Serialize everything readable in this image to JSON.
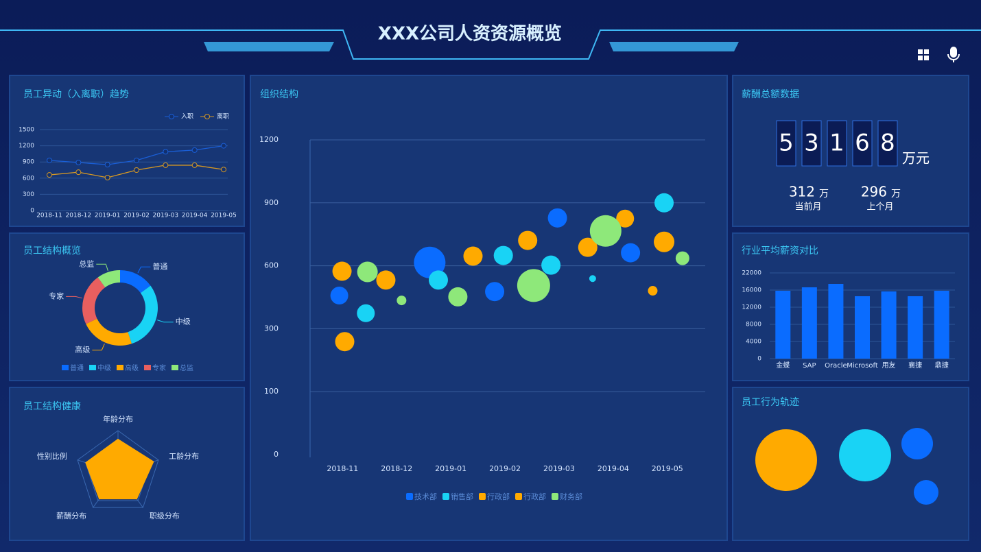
{
  "header": {
    "title": "XXX公司人资资源概览"
  },
  "chart_data": [
    {
      "type": "line",
      "title": "员工异动（入离职）趋势",
      "categories": [
        "2018-11",
        "2018-12",
        "2019-01",
        "2019-02",
        "2019-03",
        "2019-04",
        "2019-05"
      ],
      "series": [
        {
          "name": "入职",
          "color": "#1a5fd8",
          "values": [
            930,
            890,
            850,
            930,
            1090,
            1120,
            1200
          ]
        },
        {
          "name": "离职",
          "color": "#d99a22",
          "values": [
            660,
            710,
            610,
            750,
            840,
            840,
            760
          ]
        }
      ],
      "ylim": [
        0,
        1500
      ],
      "yticks": [
        0,
        300,
        600,
        900,
        1200,
        1500
      ],
      "grid": true
    },
    {
      "type": "pie",
      "title": "员工结构概览",
      "categories": [
        "普通",
        "中级",
        "高级",
        "专家",
        "总监"
      ],
      "values": [
        15,
        30,
        23,
        22,
        10
      ],
      "colors": [
        "#0a6cff",
        "#19d3f5",
        "#ffaa00",
        "#e85f5f",
        "#8ee87a"
      ],
      "donut": true
    },
    {
      "type": "radar",
      "title": "员工结构健康",
      "categories": [
        "年龄分布",
        "工龄分布",
        "职级分布",
        "薪酬分布",
        "性别比例"
      ],
      "values": [
        80,
        88,
        75,
        75,
        80
      ],
      "rlim": [
        0,
        100
      ],
      "color": "#ffaa00"
    },
    {
      "type": "scatter",
      "title": "组织结构",
      "series": [
        {
          "name": "技术部",
          "color": "#0a6cff",
          "x": [
            -0.06,
            1.61,
            2.81,
            3.97,
            5.32
          ],
          "values": [
            458,
            616,
            477,
            828,
            662
          ],
          "sizes": [
            13,
            23,
            14,
            14,
            14
          ]
        },
        {
          "name": "销售部",
          "color": "#19d3f5",
          "x": [
            0.43,
            1.77,
            2.97,
            3.85,
            4.62,
            5.94
          ],
          "values": [
            374,
            532,
            649,
            603,
            539,
            900
          ],
          "sizes": [
            13,
            14,
            14,
            14,
            5,
            14
          ]
        },
        {
          "name": "行政部",
          "color": "#ffaa00",
          "x": [
            -0.01,
            0.04,
            0.8,
            2.41,
            3.42,
            4.53
          ],
          "values": [
            574,
            259,
            532,
            646,
            721,
            688
          ],
          "sizes": [
            14,
            14,
            14,
            14,
            14,
            14
          ]
        },
        {
          "name": "行政部",
          "color": "#ffaa00",
          "x": [
            5.22,
            5.73,
            5.94
          ],
          "values": [
            825,
            481,
            714
          ],
          "sizes": [
            13,
            7,
            15
          ]
        },
        {
          "name": "财务部",
          "color": "#8ee87a",
          "x": [
            0.46,
            1.09,
            2.13,
            3.53,
            4.86,
            6.28
          ],
          "values": [
            571,
            435,
            452,
            506,
            766,
            636
          ],
          "sizes": [
            15,
            7,
            14,
            24,
            23,
            10
          ]
        }
      ],
      "xlim": [
        -0.6,
        6.7
      ],
      "xticks": [
        {
          "value": 0,
          "label": "2018-11"
        },
        {
          "value": 1,
          "label": "2018-12"
        },
        {
          "value": 2,
          "label": "2019-01"
        },
        {
          "value": 3,
          "label": "2019-02"
        },
        {
          "value": 4,
          "label": "2019-03"
        },
        {
          "value": 5,
          "label": "2019-04"
        },
        {
          "value": 6,
          "label": "2019-05"
        }
      ],
      "ylim": [
        0,
        1200
      ],
      "yticks": [
        0,
        100,
        300,
        600,
        900,
        1200
      ],
      "grid": true
    },
    {
      "type": "kpi",
      "title": "薪酬总额数据",
      "digits": [
        "5",
        "3",
        "1",
        "6",
        "8"
      ],
      "unit": "万元",
      "items": [
        {
          "value": 312,
          "unit": "万",
          "label": "当前月"
        },
        {
          "value": 296,
          "unit": "万",
          "label": "上个月"
        }
      ]
    },
    {
      "type": "bar",
      "title": "行业平均薪资对比",
      "categories": [
        "金蝶",
        "SAP",
        "Oracle",
        "Microsoft",
        "用友",
        "襄捷",
        "鼎捷"
      ],
      "values": [
        15840,
        16960,
        18160,
        14560,
        15680,
        14560,
        15840
      ],
      "color": "#0a6cff",
      "ylim": [
        0,
        22000
      ],
      "yticks": [
        0,
        4000,
        8000,
        12000,
        16000,
        22000
      ],
      "grid": true
    },
    {
      "type": "bubble",
      "title": "员工行为轨迹",
      "values": [
        45,
        38,
        23,
        18
      ],
      "colors": [
        "#ffaa00",
        "#19d3f5",
        "#0a6cff",
        "#0a6cff"
      ]
    }
  ]
}
